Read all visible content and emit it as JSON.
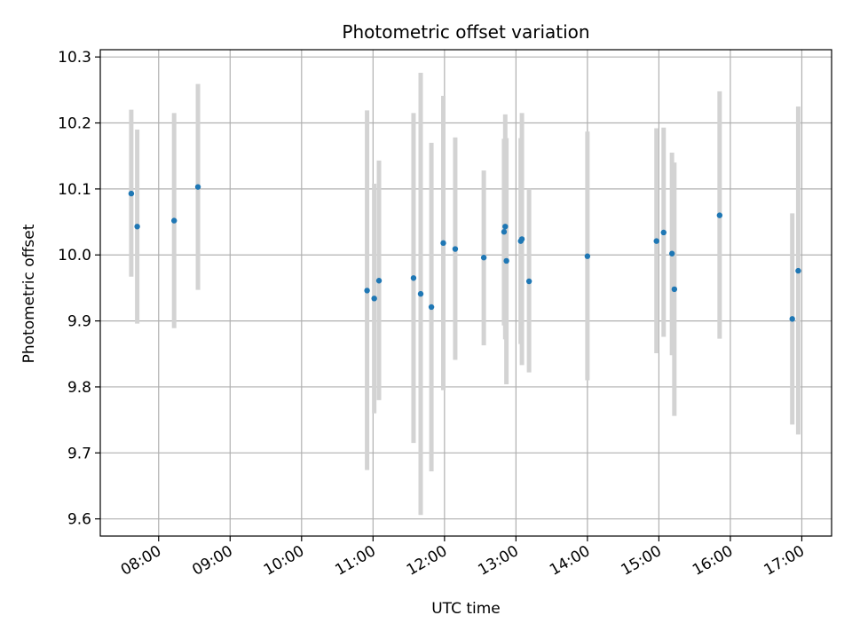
{
  "chart_data": {
    "type": "scatter",
    "title": "Photometric offset variation",
    "xlabel": "UTC time",
    "ylabel": "Photometric offset",
    "x_ticks": [
      "08:00",
      "09:00",
      "10:00",
      "11:00",
      "12:00",
      "13:00",
      "14:00",
      "15:00",
      "16:00",
      "17:00"
    ],
    "y_ticks": [
      "9.6",
      "9.7",
      "9.8",
      "9.9",
      "10.0",
      "10.1",
      "10.2",
      "10.3"
    ],
    "xlim": [
      "07:11",
      "17:25"
    ],
    "ylim": [
      9.574,
      10.311
    ],
    "grid": true,
    "colors": {
      "point": "#1f77b4",
      "errorbar": "#d3d3d3",
      "grid": "#b0b0b0"
    },
    "series": [
      {
        "points": [
          {
            "x": "07:37",
            "y": 10.093,
            "ylow": 9.967,
            "yhigh": 10.22
          },
          {
            "x": "07:42",
            "y": 10.043,
            "ylow": 9.896,
            "yhigh": 10.19
          },
          {
            "x": "08:13",
            "y": 10.052,
            "ylow": 9.889,
            "yhigh": 10.215
          },
          {
            "x": "08:33",
            "y": 10.103,
            "ylow": 9.947,
            "yhigh": 10.259
          },
          {
            "x": "10:55",
            "y": 9.946,
            "ylow": 9.674,
            "yhigh": 10.219
          },
          {
            "x": "11:01",
            "y": 9.934,
            "ylow": 9.76,
            "yhigh": 10.108
          },
          {
            "x": "11:05",
            "y": 9.961,
            "ylow": 9.78,
            "yhigh": 10.143
          },
          {
            "x": "11:34",
            "y": 9.965,
            "ylow": 9.715,
            "yhigh": 10.215
          },
          {
            "x": "11:40",
            "y": 9.941,
            "ylow": 9.606,
            "yhigh": 10.276
          },
          {
            "x": "11:49",
            "y": 9.921,
            "ylow": 9.672,
            "yhigh": 10.17
          },
          {
            "x": "11:59",
            "y": 10.018,
            "ylow": 9.795,
            "yhigh": 10.241
          },
          {
            "x": "12:09",
            "y": 10.009,
            "ylow": 9.841,
            "yhigh": 10.178
          },
          {
            "x": "12:33",
            "y": 9.996,
            "ylow": 9.863,
            "yhigh": 10.128
          },
          {
            "x": "12:50",
            "y": 10.035,
            "ylow": 9.893,
            "yhigh": 10.176
          },
          {
            "x": "12:51",
            "y": 10.043,
            "ylow": 9.872,
            "yhigh": 10.213
          },
          {
            "x": "12:52",
            "y": 9.991,
            "ylow": 9.804,
            "yhigh": 10.177
          },
          {
            "x": "13:04",
            "y": 10.021,
            "ylow": 9.865,
            "yhigh": 10.177
          },
          {
            "x": "13:05",
            "y": 10.024,
            "ylow": 9.833,
            "yhigh": 10.215
          },
          {
            "x": "13:11",
            "y": 9.96,
            "ylow": 9.822,
            "yhigh": 10.1
          },
          {
            "x": "14:00",
            "y": 9.998,
            "ylow": 9.81,
            "yhigh": 10.187
          },
          {
            "x": "14:58",
            "y": 10.021,
            "ylow": 9.851,
            "yhigh": 10.192
          },
          {
            "x": "15:04",
            "y": 10.034,
            "ylow": 9.876,
            "yhigh": 10.193
          },
          {
            "x": "15:11",
            "y": 10.002,
            "ylow": 9.848,
            "yhigh": 10.155
          },
          {
            "x": "15:13",
            "y": 9.948,
            "ylow": 9.756,
            "yhigh": 10.14
          },
          {
            "x": "15:51",
            "y": 10.06,
            "ylow": 9.873,
            "yhigh": 10.248
          },
          {
            "x": "16:52",
            "y": 9.903,
            "ylow": 9.743,
            "yhigh": 10.063
          },
          {
            "x": "16:57",
            "y": 9.976,
            "ylow": 9.728,
            "yhigh": 10.225
          }
        ]
      }
    ]
  }
}
